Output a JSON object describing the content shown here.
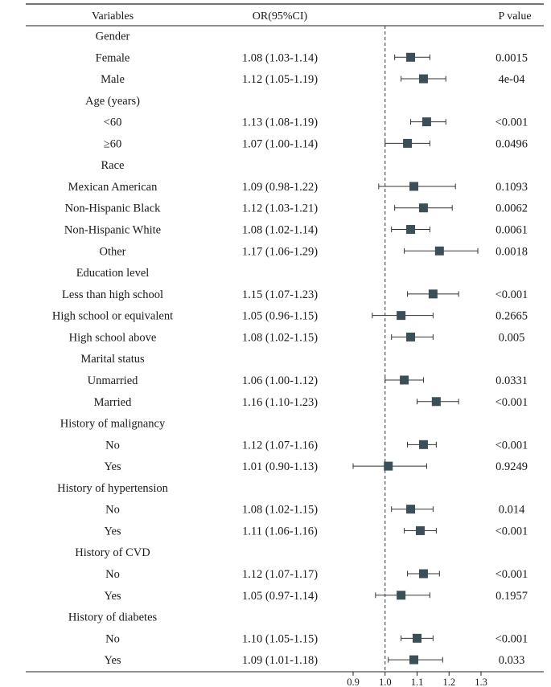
{
  "chart_data": {
    "type": "forest",
    "columns": {
      "variables": "Variables",
      "or": "OR(95%CI)",
      "p": "P value"
    },
    "reference_line": 1.0,
    "xlim": [
      0.9,
      1.3
    ],
    "xticks": [
      "0.9",
      "1.0",
      "1.1",
      "1.2",
      "1.3"
    ],
    "xtick_values": [
      0.9,
      1.0,
      1.1,
      1.2,
      1.3
    ],
    "marker_color": "#3a4f58",
    "rows": [
      {
        "label": "Gender",
        "header": true
      },
      {
        "label": "Female",
        "or": 1.08,
        "lo": 1.03,
        "hi": 1.14,
        "or_text": "1.08 (1.03-1.14)",
        "p": "0.0015"
      },
      {
        "label": "Male",
        "or": 1.12,
        "lo": 1.05,
        "hi": 1.19,
        "or_text": "1.12 (1.05-1.19)",
        "p": "4e-04"
      },
      {
        "label": "Age (years)",
        "header": true
      },
      {
        "label": "<60",
        "or": 1.13,
        "lo": 1.08,
        "hi": 1.19,
        "or_text": "1.13 (1.08-1.19)",
        "p": "<0.001"
      },
      {
        "label": "≥60",
        "or": 1.07,
        "lo": 1.0,
        "hi": 1.14,
        "or_text": "1.07 (1.00-1.14)",
        "p": "0.0496"
      },
      {
        "label": "Race",
        "header": true
      },
      {
        "label": "Mexican American",
        "or": 1.09,
        "lo": 0.98,
        "hi": 1.22,
        "or_text": "1.09 (0.98-1.22)",
        "p": "0.1093"
      },
      {
        "label": "Non-Hispanic Black",
        "or": 1.12,
        "lo": 1.03,
        "hi": 1.21,
        "or_text": "1.12 (1.03-1.21)",
        "p": "0.0062"
      },
      {
        "label": "Non-Hispanic White",
        "or": 1.08,
        "lo": 1.02,
        "hi": 1.14,
        "or_text": "1.08 (1.02-1.14)",
        "p": "0.0061"
      },
      {
        "label": "Other",
        "or": 1.17,
        "lo": 1.06,
        "hi": 1.29,
        "or_text": "1.17 (1.06-1.29)",
        "p": "0.0018"
      },
      {
        "label": "Education level",
        "header": true
      },
      {
        "label": "Less than high school",
        "or": 1.15,
        "lo": 1.07,
        "hi": 1.23,
        "or_text": "1.15 (1.07-1.23)",
        "p": "<0.001"
      },
      {
        "label": "High school or equivalent",
        "or": 1.05,
        "lo": 0.96,
        "hi": 1.15,
        "or_text": "1.05 (0.96-1.15)",
        "p": "0.2665"
      },
      {
        "label": "High school above",
        "or": 1.08,
        "lo": 1.02,
        "hi": 1.15,
        "or_text": "1.08 (1.02-1.15)",
        "p": "0.005"
      },
      {
        "label": "Marital status",
        "header": true
      },
      {
        "label": "Unmarried",
        "or": 1.06,
        "lo": 1.0,
        "hi": 1.12,
        "or_text": "1.06 (1.00-1.12)",
        "p": "0.0331"
      },
      {
        "label": "Married",
        "or": 1.16,
        "lo": 1.1,
        "hi": 1.23,
        "or_text": "1.16 (1.10-1.23)",
        "p": "<0.001"
      },
      {
        "label": "History of malignancy",
        "header": true
      },
      {
        "label": "No",
        "or": 1.12,
        "lo": 1.07,
        "hi": 1.16,
        "or_text": "1.12 (1.07-1.16)",
        "p": "<0.001"
      },
      {
        "label": "Yes",
        "or": 1.01,
        "lo": 0.9,
        "hi": 1.13,
        "or_text": "1.01 (0.90-1.13)",
        "p": "0.9249"
      },
      {
        "label": "History of hypertension",
        "header": true
      },
      {
        "label": "No",
        "or": 1.08,
        "lo": 1.02,
        "hi": 1.15,
        "or_text": "1.08 (1.02-1.15)",
        "p": "0.014"
      },
      {
        "label": "Yes",
        "or": 1.11,
        "lo": 1.06,
        "hi": 1.16,
        "or_text": "1.11 (1.06-1.16)",
        "p": "<0.001"
      },
      {
        "label": "History of CVD",
        "header": true
      },
      {
        "label": "No",
        "or": 1.12,
        "lo": 1.07,
        "hi": 1.17,
        "or_text": "1.12 (1.07-1.17)",
        "p": "<0.001"
      },
      {
        "label": "Yes",
        "or": 1.05,
        "lo": 0.97,
        "hi": 1.14,
        "or_text": "1.05 (0.97-1.14)",
        "p": "0.1957"
      },
      {
        "label": "History of  diabetes",
        "header": true
      },
      {
        "label": "No",
        "or": 1.1,
        "lo": 1.05,
        "hi": 1.15,
        "or_text": "1.10 (1.05-1.15)",
        "p": "<0.001"
      },
      {
        "label": "Yes",
        "or": 1.09,
        "lo": 1.01,
        "hi": 1.18,
        "or_text": "1.09 (1.01-1.18)",
        "p": "0.033"
      }
    ]
  }
}
